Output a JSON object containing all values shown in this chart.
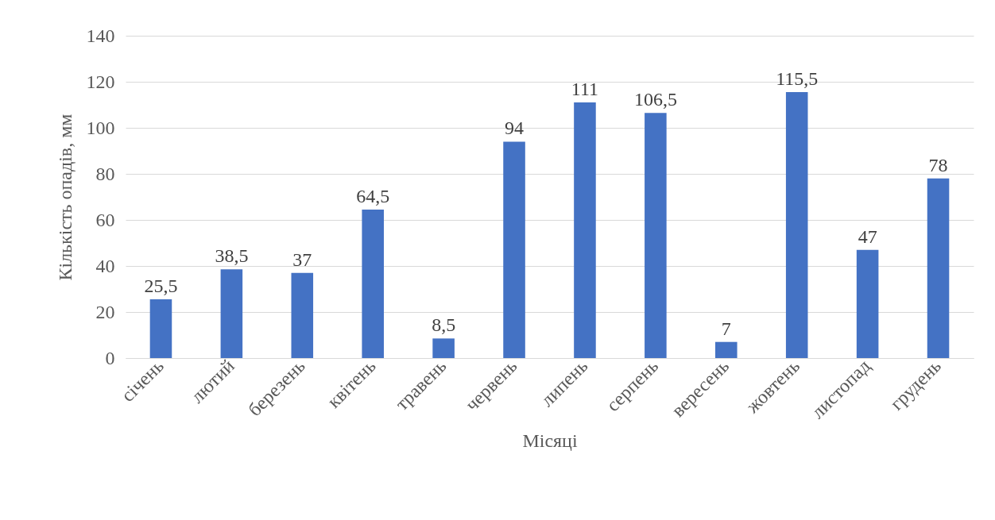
{
  "chart_data": {
    "type": "bar",
    "xlabel": "Місяці",
    "ylabel": "Кількість опадів, мм",
    "categories": [
      "січень",
      "лютий",
      "березень",
      "квітень",
      "травень",
      "червень",
      "липень",
      "серпень",
      "вересень",
      "жовтень",
      "листопад",
      "грудень"
    ],
    "values": [
      25.5,
      38.5,
      37,
      64.5,
      8.5,
      94,
      111,
      106.5,
      7,
      115.5,
      47,
      78
    ],
    "value_labels": [
      "25,5",
      "38,5",
      "37",
      "64,5",
      "8,5",
      "94",
      "111",
      "106,5",
      "7",
      "115,5",
      "47",
      "78"
    ],
    "color": "#4472c4",
    "ylim": [
      0,
      140
    ],
    "yticks": [
      0,
      20,
      40,
      60,
      80,
      100,
      120,
      140
    ],
    "grid": "y"
  }
}
